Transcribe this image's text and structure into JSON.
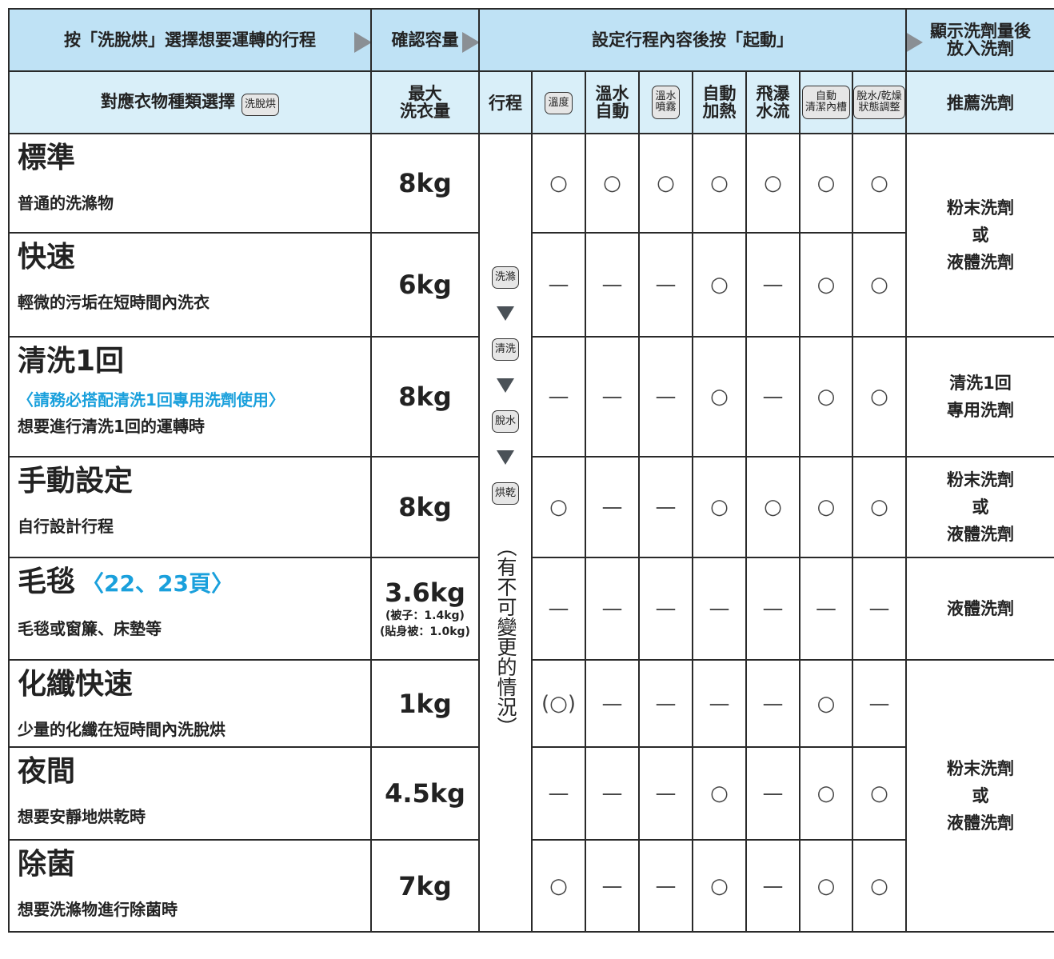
{
  "header": {
    "steps": [
      [
        "按「洗脫烘」選擇想要運轉的行程"
      ],
      [
        "確認容量"
      ],
      [
        "設定行程內容後按「起動」"
      ],
      [
        "顯示洗劑量後",
        "放入洗劑"
      ]
    ]
  },
  "columns": {
    "course": "對應衣物種類選擇",
    "course_button": "洗脫烘",
    "capacity": [
      "最大",
      "洗衣量"
    ],
    "process": "行程",
    "options": [
      {
        "lines": [
          "溫度"
        ],
        "button": true
      },
      {
        "lines": [
          "溫水",
          "自動"
        ],
        "button": false
      },
      {
        "lines": [
          "溫水",
          "噴霧"
        ],
        "button": true
      },
      {
        "lines": [
          "自動",
          "加熱"
        ],
        "button": false
      },
      {
        "lines": [
          "飛瀑",
          "水流"
        ],
        "button": false
      },
      {
        "lines": [
          "自動",
          "清潔內槽"
        ],
        "button": true
      },
      {
        "lines": [
          "脫水/乾燥",
          "狀態調整"
        ],
        "button": true
      }
    ],
    "detergent": "推薦洗劑"
  },
  "process": {
    "steps": [
      "洗滌",
      "清洗",
      "脫水",
      "烘乾"
    ],
    "note": "（有不可變更的情況）"
  },
  "rows": [
    {
      "name": "標準",
      "description": "普通的洗滌物",
      "capacity": "8kg",
      "marks": [
        "○",
        "○",
        "○",
        "○",
        "○",
        "○",
        "○"
      ]
    },
    {
      "name": "快速",
      "description": "輕微的污垢在短時間內洗衣",
      "capacity": "6kg",
      "marks": [
        "—",
        "—",
        "—",
        "○",
        "—",
        "○",
        "○"
      ]
    },
    {
      "name": "清洗1回",
      "note": "〈請務必搭配清洗1回專用洗劑使用〉",
      "description": "想要進行清洗1回的運轉時",
      "capacity": "8kg",
      "marks": [
        "—",
        "—",
        "—",
        "○",
        "—",
        "○",
        "○"
      ]
    },
    {
      "name": "手動設定",
      "description": "自行設計行程",
      "capacity": "8kg",
      "marks": [
        "○",
        "—",
        "—",
        "○",
        "○",
        "○",
        "○"
      ]
    },
    {
      "name": "毛毯",
      "page_ref": "〈22、23頁〉",
      "description": "毛毯或窗簾、床墊等",
      "capacity": "3.6kg",
      "capacity_notes": [
        "(被子：1.4kg)",
        "(貼身被：1.0kg)"
      ],
      "marks": [
        "—",
        "—",
        "—",
        "—",
        "—",
        "—",
        "—"
      ]
    },
    {
      "name": "化纖快速",
      "description": "少量的化纖在短時間內洗脫烘",
      "capacity": "1kg",
      "marks": [
        "(○)",
        "—",
        "—",
        "—",
        "—",
        "○",
        "—"
      ]
    },
    {
      "name": "夜間",
      "description": "想要安靜地烘乾時",
      "capacity": "4.5kg",
      "marks": [
        "—",
        "—",
        "—",
        "○",
        "—",
        "○",
        "○"
      ]
    },
    {
      "name": "除菌",
      "description": "想要洗滌物進行除菌時",
      "capacity": "7kg",
      "marks": [
        "○",
        "—",
        "—",
        "○",
        "—",
        "○",
        "○"
      ]
    }
  ],
  "detergents": [
    [
      "粉末洗劑",
      "或",
      "液體洗劑"
    ],
    [
      "清洗1回",
      "專用洗劑"
    ],
    [
      "粉末洗劑",
      "或",
      "液體洗劑"
    ],
    [
      "液體洗劑"
    ],
    [
      "粉末洗劑",
      "或",
      "液體洗劑"
    ]
  ]
}
